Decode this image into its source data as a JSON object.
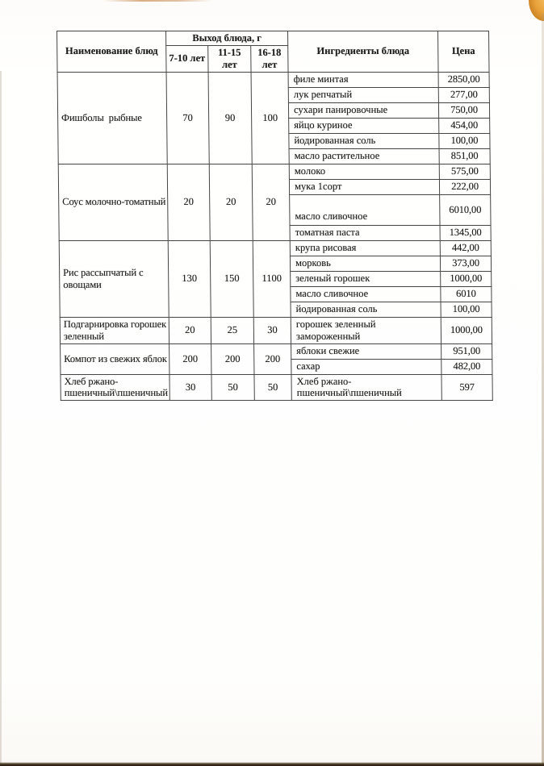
{
  "colors": {
    "paper": "#fdfcfa",
    "ink": "#1d1d1d",
    "table_border": "#454545",
    "corner_fold_shadow": "#7f8ca2",
    "corner_stain": "#e8a23a"
  },
  "table": {
    "header": {
      "name_col": "Наименование блюд",
      "output_group": "Выход блюда, г",
      "age_cols": [
        "7-10 лет",
        "11-15 лет",
        "16-18 лет"
      ],
      "ingredients_col": "Ингредиенты блюда",
      "price_col": "Цена"
    },
    "blocks": [
      {
        "dish": "Фишболы  рыбные",
        "weights": [
          "70",
          "90",
          "100"
        ],
        "ingredients": [
          {
            "name": "филе минтая",
            "price": "2850,00"
          },
          {
            "name": "лук репчатый",
            "price": "277,00"
          },
          {
            "name": "сухари панировочные",
            "price": "750,00"
          },
          {
            "name": "яйцо куриное",
            "price": "454,00"
          },
          {
            "name": "йодированная соль",
            "price": "100,00"
          },
          {
            "name": "масло растительное",
            "price": "851,00"
          }
        ]
      },
      {
        "dish": "Соус молочно-томатный",
        "weights": [
          "20",
          "20",
          "20"
        ],
        "ingredients": [
          {
            "name": "молоко",
            "price": "575,00"
          },
          {
            "name": "мука 1сорт",
            "price": "222,00"
          },
          {
            "name": "масло сливочное",
            "price": "6010,00"
          },
          {
            "name": "томатная паста",
            "price": "1345,00"
          }
        ]
      },
      {
        "dish": "Рис рассыпчатый с овощами",
        "weights": [
          "130",
          "150",
          "1100"
        ],
        "ingredients": [
          {
            "name": "крупа рисовая",
            "price": "442,00"
          },
          {
            "name": "морковь",
            "price": "373,00"
          },
          {
            "name": "зеленый горошек",
            "price": "1000,00"
          },
          {
            "name": "масло сливочное",
            "price": "6010"
          },
          {
            "name": "йодированная соль",
            "price": "100,00"
          }
        ]
      },
      {
        "dish": "Подгарнировка горошек зеленный",
        "weights": [
          "20",
          "25",
          "30"
        ],
        "ingredients": [
          {
            "name": "горошек зеленный замороженный",
            "price": "1000,00"
          }
        ]
      },
      {
        "dish": "Компот из свежих яблок",
        "weights": [
          "200",
          "200",
          "200"
        ],
        "ingredients": [
          {
            "name": "яблоки свежие",
            "price": "951,00"
          },
          {
            "name": "сахар",
            "price": "482,00"
          }
        ]
      },
      {
        "dish": "Хлеб ржано-пшеничный\\пшеничный",
        "weights": [
          "30",
          "50",
          "50"
        ],
        "ingredients": [
          {
            "name": "Хлеб ржано-пшеничный\\пшеничный",
            "price": "597"
          }
        ]
      }
    ]
  }
}
